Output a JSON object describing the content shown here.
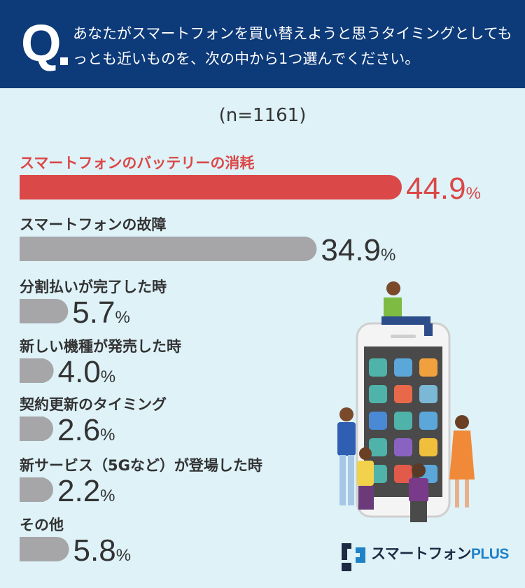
{
  "header": {
    "q_label": "Q",
    "question": "あなたがスマートフォンを買い替えようと思うタイミングとしてもっとも近いものを、次の中から1つ選んでください。"
  },
  "sample_size": "(n=1161)",
  "chart_data": {
    "type": "bar",
    "orientation": "horizontal",
    "categories": [
      "スマートフォンのバッテリーの消耗",
      "スマートフォンの故障",
      "分割払いが完了した時",
      "新しい機種が発売した時",
      "契約更新のタイミング",
      "新サービス（5Gなど）が登場した時",
      "その他"
    ],
    "values": [
      44.9,
      34.9,
      5.7,
      4.0,
      2.6,
      2.2,
      5.8
    ],
    "value_labels": [
      "44.9",
      "34.9",
      "5.7",
      "4.0",
      "2.6",
      "2.2",
      "5.8"
    ],
    "unit": "%",
    "highlight_index": 0,
    "colors": {
      "highlight": "#db4848",
      "default": "#a6a6a9",
      "label": "#333333"
    }
  },
  "logo": {
    "name": "スマートフォン",
    "suffix": "PLUS"
  }
}
